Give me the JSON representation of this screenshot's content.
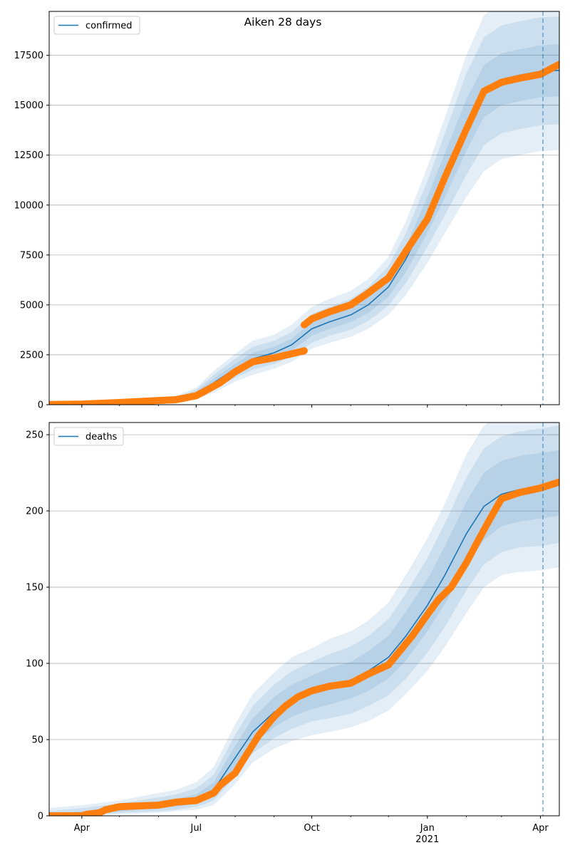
{
  "title": "Aiken 28 days",
  "colors": {
    "model_line": "#1f77b4",
    "band": "#1f77b4",
    "observed": "#ff7f0e",
    "grid": "#b0b0b0",
    "forecast_marker": "#1f77b4"
  },
  "x_axis": {
    "start": "2020-03-06",
    "end": "2021-04-16",
    "tick_labels": [
      {
        "date": "2020-04-01",
        "label": "Apr"
      },
      {
        "date": "2020-07-01",
        "label": "Jul"
      },
      {
        "date": "2020-10-01",
        "label": "Oct"
      },
      {
        "date": "2021-01-01",
        "label": "Jan",
        "sublabel": "2021"
      },
      {
        "date": "2021-04-01",
        "label": "Apr"
      }
    ],
    "forecast_start": "2021-04-03"
  },
  "chart_data": [
    {
      "type": "line",
      "legend": "confirmed",
      "legend_placement": "top-left",
      "grid": "horizontal",
      "ylim": [
        0,
        19700
      ],
      "yticks": [
        0,
        2500,
        5000,
        7500,
        10000,
        12500,
        15000,
        17500
      ],
      "model": [
        [
          "2020-03-06",
          0
        ],
        [
          "2020-04-01",
          20
        ],
        [
          "2020-05-01",
          80
        ],
        [
          "2020-06-01",
          200
        ],
        [
          "2020-06-15",
          280
        ],
        [
          "2020-07-01",
          550
        ],
        [
          "2020-07-15",
          1100
        ],
        [
          "2020-08-01",
          1800
        ],
        [
          "2020-08-15",
          2300
        ],
        [
          "2020-09-01",
          2600
        ],
        [
          "2020-09-15",
          3000
        ],
        [
          "2020-10-01",
          3800
        ],
        [
          "2020-10-15",
          4150
        ],
        [
          "2020-11-01",
          4500
        ],
        [
          "2020-11-15",
          5000
        ],
        [
          "2020-12-01",
          5900
        ],
        [
          "2020-12-15",
          7300
        ],
        [
          "2021-01-01",
          9500
        ],
        [
          "2021-01-15",
          11500
        ],
        [
          "2021-02-01",
          14000
        ],
        [
          "2021-02-15",
          15700
        ],
        [
          "2021-03-01",
          16300
        ],
        [
          "2021-03-15",
          16500
        ],
        [
          "2021-04-01",
          16700
        ],
        [
          "2021-04-16",
          16750
        ]
      ],
      "bands": [
        [
          [
            0,
            0
          ],
          [
            20,
            20
          ],
          [
            70,
            90
          ],
          [
            170,
            230
          ],
          [
            240,
            320
          ],
          [
            450,
            650
          ],
          [
            900,
            1300
          ],
          [
            1550,
            2050
          ],
          [
            2000,
            2600
          ],
          [
            2300,
            2900
          ],
          [
            2700,
            3300
          ],
          [
            3450,
            4150
          ],
          [
            3800,
            4500
          ],
          [
            4150,
            4850
          ],
          [
            4600,
            5400
          ],
          [
            5400,
            6400
          ],
          [
            6650,
            7950
          ],
          [
            8600,
            10400
          ],
          [
            10400,
            12600
          ],
          [
            12700,
            15300
          ],
          [
            14400,
            17000
          ],
          [
            15000,
            17600
          ],
          [
            15200,
            17800
          ],
          [
            15400,
            18000
          ],
          [
            15450,
            18050
          ]
        ],
        [
          [
            0,
            0
          ],
          [
            15,
            30
          ],
          [
            55,
            110
          ],
          [
            140,
            280
          ],
          [
            200,
            380
          ],
          [
            380,
            750
          ],
          [
            750,
            1500
          ],
          [
            1350,
            2300
          ],
          [
            1750,
            2900
          ],
          [
            2050,
            3200
          ],
          [
            2400,
            3650
          ],
          [
            3100,
            4550
          ],
          [
            3450,
            4900
          ],
          [
            3750,
            5300
          ],
          [
            4200,
            5900
          ],
          [
            4950,
            6950
          ],
          [
            6100,
            8600
          ],
          [
            7900,
            11200
          ],
          [
            9500,
            13600
          ],
          [
            11500,
            16600
          ],
          [
            13000,
            18400
          ],
          [
            13600,
            19000
          ],
          [
            13800,
            19200
          ],
          [
            14000,
            19400
          ],
          [
            14050,
            19450
          ]
        ],
        [
          [
            0,
            0
          ],
          [
            10,
            40
          ],
          [
            40,
            140
          ],
          [
            100,
            340
          ],
          [
            150,
            450
          ],
          [
            300,
            850
          ],
          [
            600,
            1700
          ],
          [
            1150,
            2550
          ],
          [
            1500,
            3200
          ],
          [
            1800,
            3500
          ],
          [
            2150,
            4000
          ],
          [
            2800,
            4900
          ],
          [
            3100,
            5300
          ],
          [
            3400,
            5700
          ],
          [
            3800,
            6300
          ],
          [
            4500,
            7400
          ],
          [
            5500,
            9200
          ],
          [
            7100,
            11900
          ],
          [
            8600,
            14400
          ],
          [
            10400,
            17500
          ],
          [
            11700,
            19500
          ],
          [
            12300,
            20200
          ],
          [
            12500,
            20500
          ],
          [
            12700,
            20700
          ],
          [
            12750,
            20750
          ]
        ]
      ],
      "observed_segments": [
        [
          [
            "2020-03-06",
            10
          ],
          [
            "2020-04-01",
            30
          ],
          [
            "2020-05-01",
            110
          ],
          [
            "2020-06-01",
            210
          ],
          [
            "2020-06-15",
            250
          ],
          [
            "2020-07-01",
            450
          ],
          [
            "2020-07-10",
            750
          ],
          [
            "2020-07-20",
            1100
          ],
          [
            "2020-08-01",
            1650
          ],
          [
            "2020-08-15",
            2150
          ],
          [
            "2020-09-01",
            2350
          ],
          [
            "2020-09-15",
            2550
          ],
          [
            "2020-09-25",
            2700
          ]
        ],
        [
          [
            "2020-09-25",
            4000
          ],
          [
            "2020-10-01",
            4300
          ],
          [
            "2020-10-15",
            4650
          ],
          [
            "2020-11-01",
            5000
          ],
          [
            "2020-11-15",
            5600
          ],
          [
            "2020-12-01",
            6350
          ],
          [
            "2020-12-15",
            7700
          ],
          [
            "2021-01-01",
            9300
          ],
          [
            "2021-01-15",
            11400
          ],
          [
            "2021-02-01",
            13800
          ],
          [
            "2021-02-15",
            15700
          ],
          [
            "2021-03-01",
            16150
          ],
          [
            "2021-03-15",
            16350
          ],
          [
            "2021-04-01",
            16550
          ],
          [
            "2021-04-16",
            17050
          ]
        ]
      ]
    },
    {
      "type": "line",
      "legend": "deaths",
      "legend_placement": "top-left",
      "grid": "horizontal",
      "ylim": [
        0,
        258
      ],
      "yticks": [
        0,
        50,
        100,
        150,
        200,
        250
      ],
      "model": [
        [
          "2020-03-06",
          0
        ],
        [
          "2020-04-01",
          1
        ],
        [
          "2020-05-01",
          4
        ],
        [
          "2020-06-01",
          7
        ],
        [
          "2020-06-15",
          8
        ],
        [
          "2020-07-01",
          10
        ],
        [
          "2020-07-15",
          17
        ],
        [
          "2020-08-01",
          38
        ],
        [
          "2020-08-15",
          55
        ],
        [
          "2020-09-01",
          68
        ],
        [
          "2020-09-15",
          75
        ],
        [
          "2020-10-01",
          81
        ],
        [
          "2020-10-15",
          85
        ],
        [
          "2020-11-01",
          89
        ],
        [
          "2020-11-15",
          95
        ],
        [
          "2020-12-01",
          104
        ],
        [
          "2020-12-15",
          118
        ],
        [
          "2021-01-01",
          138
        ],
        [
          "2021-01-15",
          158
        ],
        [
          "2021-02-01",
          185
        ],
        [
          "2021-02-15",
          203
        ],
        [
          "2021-03-01",
          211
        ],
        [
          "2021-03-15",
          214
        ],
        [
          "2021-04-01",
          216
        ],
        [
          "2021-04-16",
          218
        ]
      ],
      "bands": [
        [
          [
            0,
            1
          ],
          [
            0,
            3
          ],
          [
            3,
            6
          ],
          [
            5,
            9
          ],
          [
            6,
            11
          ],
          [
            8,
            14
          ],
          [
            13,
            22
          ],
          [
            31,
            46
          ],
          [
            47,
            64
          ],
          [
            58,
            78
          ],
          [
            65,
            86
          ],
          [
            70,
            92
          ],
          [
            73,
            97
          ],
          [
            77,
            101
          ],
          [
            82,
            108
          ],
          [
            90,
            118
          ],
          [
            102,
            134
          ],
          [
            121,
            155
          ],
          [
            139,
            177
          ],
          [
            164,
            206
          ],
          [
            181,
            225
          ],
          [
            190,
            233
          ],
          [
            193,
            236
          ],
          [
            195,
            238
          ],
          [
            197,
            240
          ]
        ],
        [
          [
            0,
            3
          ],
          [
            0,
            5
          ],
          [
            2,
            8
          ],
          [
            3,
            12
          ],
          [
            4,
            14
          ],
          [
            6,
            18
          ],
          [
            10,
            27
          ],
          [
            26,
            53
          ],
          [
            41,
            72
          ],
          [
            51,
            86
          ],
          [
            57,
            95
          ],
          [
            62,
            101
          ],
          [
            64,
            106
          ],
          [
            67,
            111
          ],
          [
            72,
            118
          ],
          [
            79,
            129
          ],
          [
            90,
            146
          ],
          [
            107,
            169
          ],
          [
            124,
            192
          ],
          [
            148,
            222
          ],
          [
            165,
            241
          ],
          [
            173,
            249
          ],
          [
            176,
            252
          ],
          [
            177,
            254
          ],
          [
            179,
            256
          ]
        ],
        [
          [
            0,
            5
          ],
          [
            0,
            7
          ],
          [
            1,
            10
          ],
          [
            2,
            15
          ],
          [
            3,
            17
          ],
          [
            4,
            22
          ],
          [
            7,
            32
          ],
          [
            21,
            60
          ],
          [
            35,
            80
          ],
          [
            44,
            94
          ],
          [
            49,
            104
          ],
          [
            53,
            110
          ],
          [
            55,
            116
          ],
          [
            58,
            121
          ],
          [
            62,
            128
          ],
          [
            69,
            140
          ],
          [
            80,
            158
          ],
          [
            95,
            182
          ],
          [
            111,
            205
          ],
          [
            133,
            237
          ],
          [
            150,
            256
          ],
          [
            158,
            264
          ],
          [
            160,
            267
          ],
          [
            161,
            269
          ],
          [
            163,
            271
          ]
        ]
      ],
      "observed_segments": [
        [
          [
            "2020-03-06",
            0
          ],
          [
            "2020-04-01",
            0
          ],
          [
            "2020-04-05",
            1
          ],
          [
            "2020-04-15",
            2
          ],
          [
            "2020-04-20",
            4
          ],
          [
            "2020-05-01",
            6
          ],
          [
            "2020-06-01",
            7
          ],
          [
            "2020-06-15",
            9
          ],
          [
            "2020-07-01",
            10
          ],
          [
            "2020-07-15",
            15
          ],
          [
            "2020-07-20",
            20
          ],
          [
            "2020-08-01",
            28
          ],
          [
            "2020-08-10",
            40
          ],
          [
            "2020-08-20",
            53
          ],
          [
            "2020-09-01",
            65
          ],
          [
            "2020-09-10",
            72
          ],
          [
            "2020-09-20",
            78
          ],
          [
            "2020-10-01",
            82
          ],
          [
            "2020-10-15",
            85
          ],
          [
            "2020-11-01",
            87
          ],
          [
            "2020-11-15",
            93
          ],
          [
            "2020-12-01",
            99
          ],
          [
            "2020-12-10",
            108
          ],
          [
            "2020-12-20",
            118
          ],
          [
            "2021-01-01",
            132
          ],
          [
            "2021-01-10",
            142
          ],
          [
            "2021-01-20",
            150
          ],
          [
            "2021-02-01",
            166
          ],
          [
            "2021-02-10",
            180
          ],
          [
            "2021-02-20",
            195
          ],
          [
            "2021-03-01",
            208
          ],
          [
            "2021-03-15",
            212
          ],
          [
            "2021-04-01",
            215
          ],
          [
            "2021-04-16",
            219
          ]
        ]
      ]
    }
  ]
}
